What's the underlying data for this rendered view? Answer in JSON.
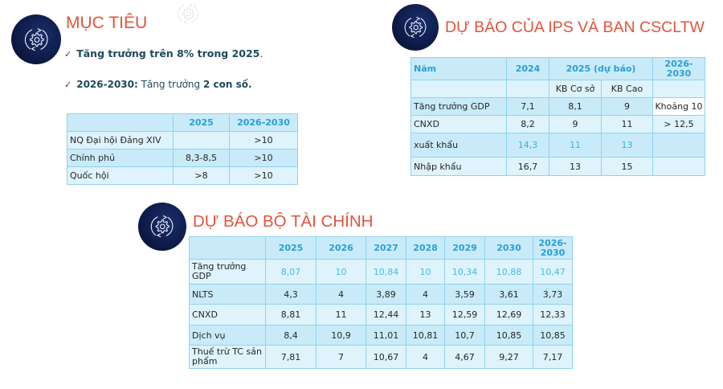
{
  "sections": {
    "goals": {
      "title": "MỤC TIÊU",
      "icon": "gear-cycle-icon",
      "bullets": [
        {
          "bold_prefix": "Tăng trưởng trên 8% trong 2025",
          "text": "."
        },
        {
          "bold_prefix": "2026-2030:",
          "text": " Tăng trưởng ",
          "bold_suffix": "2 con số."
        }
      ],
      "table": {
        "headers": [
          "",
          "2025",
          "2026-2030"
        ],
        "rows": [
          [
            "NQ Đại hội Đảng XIV",
            "",
            ">10"
          ],
          [
            "Chính phủ",
            "8,3-8,5",
            ">10"
          ],
          [
            "Quốc hội",
            ">8",
            ">10"
          ]
        ]
      }
    },
    "ips_forecast": {
      "title": "DỰ BÁO CỦA IPS VÀ BAN CSCLTW",
      "icon": "gear-cycle-icon",
      "table": {
        "header": [
          "Năm",
          "2024",
          "2025 (dự báo)",
          "2026-2030"
        ],
        "subheader": [
          "",
          "",
          "KB Cơ sở",
          "KB Cao",
          ""
        ],
        "rows": [
          [
            "Tăng trưởng GDP",
            "7,1",
            "8,1",
            "9",
            "Khoảng 10"
          ],
          [
            "CNXD",
            "8,2",
            "9",
            "11",
            "> 12,5"
          ],
          [
            "xuất khẩu",
            "14,3",
            "11",
            "13",
            ""
          ],
          [
            "Nhập khẩu",
            "16,7",
            "13",
            "15",
            ""
          ]
        ]
      }
    },
    "mof_forecast": {
      "title": "DỰ BÁO BỘ TÀI CHÍNH",
      "icon": "gear-cycle-icon",
      "table": {
        "headers": [
          "",
          "2025",
          "2026",
          "2027",
          "2028",
          "2029",
          "2030",
          "2026-2030"
        ],
        "rows": [
          [
            "Tăng trưởng GDP",
            "8,07",
            "10",
            "10,84",
            "10",
            "10,34",
            "10,88",
            "10,47"
          ],
          [
            "NLTS",
            "4,3",
            "4",
            "3,89",
            "4",
            "3,59",
            "3,61",
            "3,73"
          ],
          [
            "CNXD",
            "8,81",
            "11",
            "12,44",
            "13",
            "12,59",
            "12,69",
            "12,33"
          ],
          [
            "Dịch vụ",
            "8,4",
            "10,9",
            "11,01",
            "10,81",
            "10,7",
            "10,85",
            "10,85"
          ],
          [
            "Thuế trừ TC sản phẩm",
            "7,81",
            "7",
            "10,67",
            "4",
            "4,67",
            "9,27",
            "7,17"
          ]
        ]
      }
    }
  },
  "colors": {
    "title": "#e2533c",
    "header_text": "#2a9fd6",
    "highlight_text": "#39b0e6",
    "row_dark": "#c9ebf9",
    "row_light": "#def3fc",
    "border": "#8fd2ef",
    "icon_bg": "#0e1c4a"
  }
}
